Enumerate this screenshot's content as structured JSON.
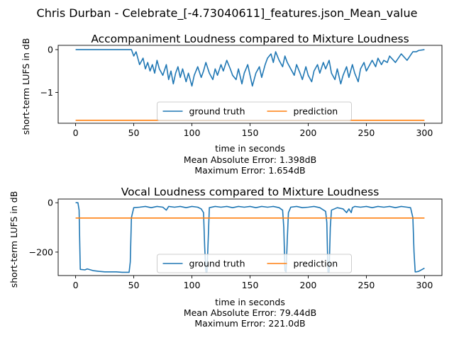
{
  "figure": {
    "suptitle": "Chris Durban - Celebrate_[-4.73040611]_features.json_Mean_value"
  },
  "colors": {
    "ground_truth": "#1f77b4",
    "prediction": "#ff7f0e"
  },
  "chart_data": [
    {
      "type": "line",
      "title": "Accompaniment Loudness compared to Mixture Loudness",
      "xlabel": "time in seconds",
      "ylabel": "short-term LUFS in dB",
      "annotations": [
        "Mean Absolute Error: 1.398dB",
        "Maximum Error: 1.654dB"
      ],
      "xlim": [
        -15,
        315
      ],
      "ylim": [
        -1.72,
        0.1
      ],
      "xticks": [
        0,
        50,
        100,
        150,
        200,
        250,
        300
      ],
      "yticks": [
        0,
        -1
      ],
      "ytick_labels": [
        "0",
        "−1"
      ],
      "legend": {
        "location": "lower center",
        "columns": 2
      },
      "series": [
        {
          "name": "ground truth",
          "color": "#1f77b4",
          "x": [
            0,
            48,
            50,
            52,
            55,
            58,
            60,
            62,
            64,
            66,
            68,
            70,
            72,
            75,
            78,
            80,
            82,
            84,
            86,
            88,
            90,
            92,
            95,
            97,
            100,
            102,
            105,
            108,
            110,
            112,
            115,
            118,
            120,
            122,
            125,
            127,
            130,
            133,
            135,
            138,
            140,
            143,
            145,
            148,
            150,
            152,
            155,
            158,
            160,
            163,
            165,
            168,
            170,
            172,
            175,
            178,
            180,
            182,
            185,
            188,
            190,
            193,
            195,
            198,
            200,
            203,
            205,
            208,
            210,
            213,
            215,
            218,
            220,
            223,
            225,
            228,
            230,
            233,
            235,
            238,
            240,
            243,
            245,
            248,
            250,
            253,
            255,
            258,
            260,
            263,
            265,
            268,
            270,
            275,
            280,
            285,
            290,
            293,
            295,
            300
          ],
          "y": [
            0,
            0,
            -0.15,
            -0.05,
            -0.35,
            -0.2,
            -0.45,
            -0.3,
            -0.5,
            -0.35,
            -0.55,
            -0.25,
            -0.45,
            -0.6,
            -0.35,
            -0.7,
            -0.5,
            -0.8,
            -0.55,
            -0.4,
            -0.65,
            -0.45,
            -0.75,
            -0.55,
            -0.85,
            -0.6,
            -0.4,
            -0.65,
            -0.5,
            -0.3,
            -0.55,
            -0.7,
            -0.45,
            -0.6,
            -0.35,
            -0.5,
            -0.25,
            -0.45,
            -0.6,
            -0.7,
            -0.45,
            -0.8,
            -0.55,
            -0.35,
            -0.6,
            -0.85,
            -0.55,
            -0.4,
            -0.65,
            -0.35,
            -0.2,
            -0.1,
            -0.3,
            -0.05,
            -0.25,
            -0.4,
            -0.15,
            -0.3,
            -0.45,
            -0.6,
            -0.35,
            -0.55,
            -0.7,
            -0.4,
            -0.6,
            -0.75,
            -0.5,
            -0.35,
            -0.55,
            -0.3,
            -0.45,
            -0.25,
            -0.55,
            -0.7,
            -0.45,
            -0.8,
            -0.6,
            -0.4,
            -0.65,
            -0.35,
            -0.55,
            -0.75,
            -0.45,
            -0.3,
            -0.5,
            -0.35,
            -0.25,
            -0.4,
            -0.2,
            -0.35,
            -0.25,
            -0.3,
            -0.15,
            -0.3,
            -0.1,
            -0.25,
            -0.05,
            -0.05,
            -0.02,
            0
          ]
        },
        {
          "name": "prediction",
          "color": "#ff7f0e",
          "x": [
            0,
            300
          ],
          "y": [
            -1.65,
            -1.65
          ]
        }
      ]
    },
    {
      "type": "line",
      "title": "Vocal Loudness compared to Mixture Loudness",
      "xlabel": "time in seconds",
      "ylabel": "short-term LUFS in dB",
      "annotations": [
        "Mean Absolute Error: 79.44dB",
        "Maximum Error: 221.0dB"
      ],
      "xlim": [
        -15,
        315
      ],
      "ylim": [
        -295,
        15
      ],
      "xticks": [
        0,
        50,
        100,
        150,
        200,
        250,
        300
      ],
      "yticks": [
        0,
        -200
      ],
      "ytick_labels": [
        "0",
        "−200"
      ],
      "legend": {
        "location": "lower center",
        "columns": 2
      },
      "series": [
        {
          "name": "ground truth",
          "color": "#1f77b4",
          "x": [
            0,
            2,
            3,
            4,
            8,
            10,
            15,
            20,
            25,
            30,
            35,
            40,
            46,
            47,
            48,
            50,
            55,
            60,
            65,
            70,
            75,
            78,
            80,
            85,
            90,
            95,
            100,
            105,
            108,
            110,
            111,
            112,
            113,
            114,
            115,
            120,
            125,
            130,
            135,
            140,
            145,
            150,
            155,
            160,
            165,
            170,
            175,
            178,
            179,
            180,
            181,
            182,
            183,
            185,
            190,
            195,
            200,
            205,
            210,
            215,
            216,
            217,
            218,
            219,
            220,
            225,
            230,
            233,
            235,
            237,
            238,
            240,
            245,
            250,
            255,
            260,
            265,
            270,
            275,
            280,
            285,
            288,
            290,
            291,
            292,
            293,
            295,
            300
          ],
          "y": [
            0,
            0,
            -30,
            -270,
            -272,
            -268,
            -275,
            -278,
            -280,
            -280,
            -280,
            -282,
            -282,
            -240,
            -60,
            -20,
            -18,
            -15,
            -20,
            -15,
            -18,
            -30,
            -15,
            -18,
            -15,
            -20,
            -15,
            -18,
            -25,
            -40,
            -180,
            -280,
            -280,
            -150,
            -20,
            -15,
            -18,
            -15,
            -20,
            -15,
            -18,
            -15,
            -20,
            -15,
            -18,
            -15,
            -20,
            -30,
            -100,
            -275,
            -280,
            -150,
            -40,
            -18,
            -15,
            -20,
            -18,
            -15,
            -20,
            -35,
            -80,
            -280,
            -280,
            -100,
            -30,
            -20,
            -25,
            -40,
            -25,
            -40,
            -20,
            -15,
            -18,
            -15,
            -20,
            -15,
            -18,
            -15,
            -20,
            -15,
            -18,
            -20,
            -60,
            -200,
            -280,
            -280,
            -278,
            -265
          ]
        },
        {
          "name": "prediction",
          "color": "#ff7f0e",
          "x": [
            0,
            300
          ],
          "y": [
            -62,
            -62
          ]
        }
      ]
    }
  ]
}
